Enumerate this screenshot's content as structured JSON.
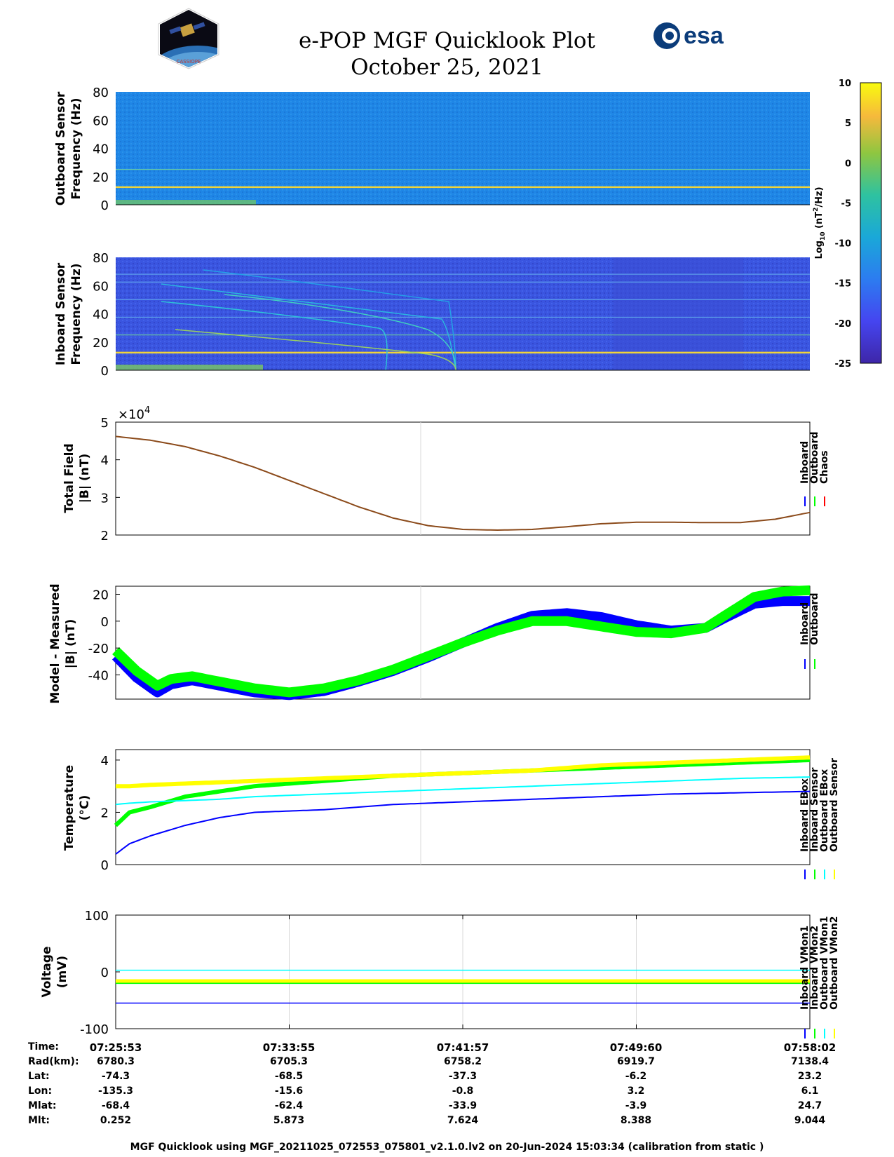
{
  "header": {
    "title_line1": "e-POP MGF Quicklook Plot",
    "title_line2": "October 25, 2021",
    "logo_left_text": "CASSIOPE",
    "logo_right_text": "esa"
  },
  "footer": {
    "text": "MGF Quicklook using MGF_20211025_072553_075801_v2.1.0.lv2 on 20-Jun-2024 15:03:34 (calibration from static )"
  },
  "colors": {
    "inboard": "#0000ff",
    "outboard": "#00ff00",
    "chaos": "#ff0000",
    "cyan": "#00ffff",
    "yellow": "#ffff00",
    "spectrogram_bg_outboard": "#1e7ee6",
    "spectrogram_bg_inboard": "#3b4fd8"
  },
  "chart_data": [
    {
      "id": "outboard_spectrogram",
      "type": "heatmap",
      "ylabel": "Outboard Sensor Frequency (Hz)",
      "ylabel_line1": "Outboard Sensor",
      "ylabel_line2": "Frequency (Hz)",
      "ylim": [
        0,
        80
      ],
      "yticks": [
        "0",
        "20",
        "40",
        "60",
        "80"
      ],
      "lines_hz": [
        12.5,
        25
      ]
    },
    {
      "id": "inboard_spectrogram",
      "type": "heatmap",
      "ylabel": "Inboard Sensor Frequency (Hz)",
      "ylabel_line1": "Inboard Sensor",
      "ylabel_line2": "Frequency (Hz)",
      "ylim": [
        0,
        80
      ],
      "yticks": [
        "0",
        "20",
        "40",
        "60",
        "80"
      ],
      "lines_hz": [
        12.5,
        25,
        37.5,
        50,
        62.5,
        68
      ]
    },
    {
      "id": "colorbar",
      "type": "heatmap",
      "label": "Log10 (nT^2/Hz)",
      "label_main": "Log",
      "label_sub": "10",
      "label_rest": " (nT",
      "label_sup": "2",
      "label_end": "/Hz)",
      "range": [
        -25,
        10
      ],
      "ticks": [
        "10",
        "5",
        "0",
        "-5",
        "-10",
        "-15",
        "-20",
        "-25"
      ]
    },
    {
      "id": "total_field",
      "type": "line",
      "ylabel_line1": "Total Field",
      "ylabel_line2": "|B| (nT)",
      "exponent_label": "×10",
      "exponent": "4",
      "ylim": [
        2,
        5
      ],
      "yticks": [
        "2",
        "3",
        "4",
        "5"
      ],
      "x": [
        0,
        0.05,
        0.1,
        0.15,
        0.2,
        0.25,
        0.3,
        0.35,
        0.4,
        0.45,
        0.5,
        0.55,
        0.6,
        0.65,
        0.7,
        0.75,
        0.8,
        0.85,
        0.9,
        0.95,
        1.0
      ],
      "values": [
        4.62,
        4.52,
        4.35,
        4.1,
        3.8,
        3.45,
        3.1,
        2.75,
        2.45,
        2.25,
        2.15,
        2.13,
        2.15,
        2.22,
        2.3,
        2.34,
        2.34,
        2.33,
        2.33,
        2.42,
        2.6
      ],
      "legend": [
        "Inboard",
        "Outboard",
        "Chaos"
      ]
    },
    {
      "id": "model_measured",
      "type": "line",
      "ylabel_line1": "Model - Measured",
      "ylabel_line2": "|B| (nT)",
      "ylim": [
        -58,
        26
      ],
      "yticks": [
        "20",
        "0",
        "-20",
        "-40"
      ],
      "ytick_values": [
        20,
        0,
        -20,
        -40
      ],
      "x": [
        0,
        0.03,
        0.06,
        0.08,
        0.11,
        0.15,
        0.2,
        0.25,
        0.3,
        0.35,
        0.4,
        0.45,
        0.5,
        0.55,
        0.6,
        0.65,
        0.7,
        0.75,
        0.8,
        0.85,
        0.88,
        0.92,
        0.96,
        1.0
      ],
      "series": [
        {
          "name": "Inboard",
          "values": [
            -26,
            -42,
            -53,
            -47,
            -44,
            -48,
            -53,
            -55,
            -52,
            -45,
            -37,
            -27,
            -16,
            -5,
            4,
            6,
            3,
            -3,
            -7,
            -5,
            3,
            13,
            15,
            15
          ]
        },
        {
          "name": "Outboard",
          "values": [
            -22,
            -37,
            -48,
            -43,
            -41,
            -45,
            -50,
            -53,
            -50,
            -44,
            -36,
            -26,
            -16,
            -7,
            0,
            0,
            -4,
            -8,
            -9,
            -5,
            5,
            18,
            22,
            23
          ]
        }
      ],
      "legend": [
        "Inboard",
        "Outboard"
      ]
    },
    {
      "id": "temperature",
      "type": "line",
      "ylabel_line1": "Temperature",
      "ylabel_line2": "(°C)",
      "ylim": [
        0,
        4.4
      ],
      "yticks": [
        "0",
        "2",
        "4"
      ],
      "x": [
        0,
        0.02,
        0.05,
        0.1,
        0.15,
        0.2,
        0.3,
        0.4,
        0.5,
        0.6,
        0.7,
        0.8,
        0.9,
        1.0
      ],
      "series": [
        {
          "name": "Inboard EBox",
          "values": [
            0.4,
            0.8,
            1.1,
            1.5,
            1.8,
            2.0,
            2.1,
            2.3,
            2.4,
            2.5,
            2.6,
            2.7,
            2.75,
            2.8
          ]
        },
        {
          "name": "Inboard Sensor",
          "values": [
            1.5,
            2.0,
            2.2,
            2.6,
            2.8,
            3.0,
            3.2,
            3.4,
            3.5,
            3.6,
            3.7,
            3.8,
            3.9,
            4.0
          ]
        },
        {
          "name": "Outboard EBox",
          "values": [
            2.3,
            2.35,
            2.4,
            2.45,
            2.5,
            2.6,
            2.7,
            2.8,
            2.9,
            3.0,
            3.1,
            3.2,
            3.3,
            3.35
          ]
        },
        {
          "name": "Outboard Sensor",
          "values": [
            3.0,
            3.0,
            3.05,
            3.1,
            3.15,
            3.2,
            3.3,
            3.4,
            3.5,
            3.6,
            3.8,
            3.9,
            4.0,
            4.1
          ]
        }
      ],
      "legend": [
        "Inboard EBox",
        "Inboard Sensor",
        "Outboard EBox",
        "Outboard Sensor"
      ]
    },
    {
      "id": "voltage",
      "type": "line",
      "ylabel_line1": "Voltage",
      "ylabel_line2": "(mV)",
      "ylim": [
        -100,
        100
      ],
      "yticks": [
        "100",
        "0",
        "-100"
      ],
      "ytick_values": [
        100,
        0,
        -100
      ],
      "series": [
        {
          "name": "Inboard VMon1",
          "values": [
            -55
          ]
        },
        {
          "name": "Inboard VMon2",
          "values": [
            -18
          ]
        },
        {
          "name": "Outboard VMon1",
          "values": [
            3
          ]
        },
        {
          "name": "Outboard VMon2",
          "values": [
            -16
          ]
        }
      ],
      "legend": [
        "Inboard VMon1",
        "Inboard VMon2",
        "Outboard VMon1",
        "Outboard VMon2"
      ]
    }
  ],
  "ephemeris": {
    "labels": [
      "Time:",
      "Rad(km):",
      "Lat:",
      "Lon:",
      "Mlat:",
      "Mlt:"
    ],
    "columns": [
      {
        "time": "07:25:53",
        "rad": "6780.3",
        "lat": "-74.3",
        "lon": "-135.3",
        "mlat": "-68.4",
        "mlt": "0.252"
      },
      {
        "time": "07:33:55",
        "rad": "6705.3",
        "lat": "-68.5",
        "lon": "-15.6",
        "mlat": "-62.4",
        "mlt": "5.873"
      },
      {
        "time": "07:41:57",
        "rad": "6758.2",
        "lat": "-37.3",
        "lon": "-0.8",
        "mlat": "-33.9",
        "mlt": "7.624"
      },
      {
        "time": "07:49:60",
        "rad": "6919.7",
        "lat": "-6.2",
        "lon": "3.2",
        "mlat": "-3.9",
        "mlt": "8.388"
      },
      {
        "time": "07:58:02",
        "rad": "7138.4",
        "lat": "23.2",
        "lon": "6.1",
        "mlat": "24.7",
        "mlt": "9.044"
      }
    ]
  }
}
